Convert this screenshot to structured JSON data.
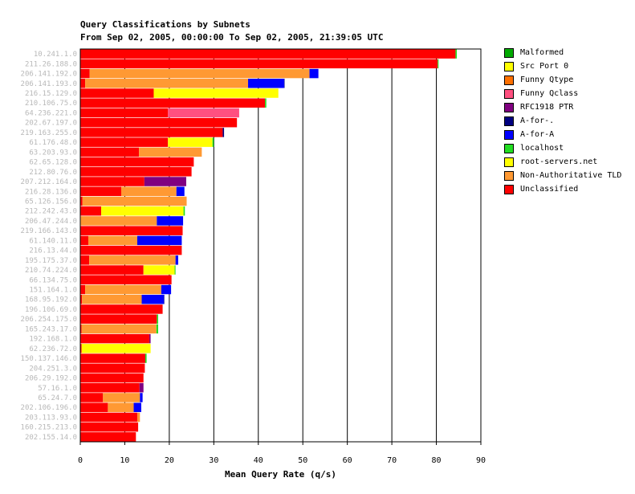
{
  "chart_data": {
    "type": "bar",
    "orientation": "horizontal",
    "stacked": true,
    "title": "Query Classifications by Subnets",
    "subtitle": "From Sep 02, 2005, 00:00:00 To Sep 02, 2005, 21:39:05 UTC",
    "xlabel": "Mean Query Rate (q/s)",
    "ylabel": "",
    "xlim": [
      0,
      90
    ],
    "xticks": [
      0,
      10,
      20,
      30,
      40,
      50,
      60,
      70,
      80,
      90
    ],
    "grid": true,
    "legend_position": "right",
    "categories": [
      "10.241.1.0",
      "211.26.188.0",
      "206.141.192.0",
      "206.141.193.0",
      "216.15.129.0",
      "210.106.75.0",
      "64.236.221.0",
      "202.67.197.0",
      "219.163.255.0",
      "61.176.48.0",
      "63.203.93.0",
      "62.65.128.0",
      "212.80.76.0",
      "207.212.164.0",
      "216.28.136.0",
      "65.126.156.0",
      "212.242.43.0",
      "206.47.244.0",
      "219.166.143.0",
      "61.140.11.0",
      "216.13.44.0",
      "195.175.37.0",
      "210.74.224.0",
      "66.134.75.0",
      "151.164.1.0",
      "168.95.192.0",
      "196.106.69.0",
      "206.254.175.0",
      "165.243.17.0",
      "192.168.1.0",
      "62.236.72.0",
      "150.137.146.0",
      "204.251.3.0",
      "206.29.192.0",
      "57.16.1.0",
      "65.24.7.0",
      "202.106.196.0",
      "203.113.93.0",
      "160.215.213.0",
      "202.155.14.0"
    ],
    "series": [
      {
        "name": "Unclassified",
        "color": "#ff0000",
        "values": [
          84.3,
          80.3,
          2.1,
          1.1,
          16.5,
          41.5,
          19.7,
          35.2,
          32.0,
          19.7,
          13.2,
          25.5,
          25.0,
          14.4,
          9.2,
          0.5,
          4.7,
          0.1,
          23.0,
          1.8,
          22.8,
          2.0,
          14.2,
          20.5,
          1.1,
          0.4,
          18.5,
          17.2,
          0.3,
          15.5,
          0.3,
          14.6,
          14.5,
          14.2,
          13.3,
          5.1,
          6.2,
          12.8,
          13.0,
          12.5
        ]
      },
      {
        "name": "Non-Authoritative TLD",
        "color": "#ff9933",
        "values": [
          0,
          0,
          49.4,
          36.6,
          0,
          0,
          0,
          0,
          0,
          0,
          14.1,
          0,
          0,
          0,
          12.4,
          23.4,
          0,
          17.1,
          0,
          11.0,
          0,
          19.4,
          0,
          0,
          17.1,
          13.4,
          0,
          0,
          16.8,
          0,
          0,
          0,
          0,
          0,
          0,
          8.3,
          5.8,
          0.6,
          0,
          0
        ]
      },
      {
        "name": "root-servers.net",
        "color": "#ffff00",
        "values": [
          0,
          0,
          0,
          0,
          28.0,
          0,
          0,
          0,
          0,
          10.0,
          0,
          0,
          0,
          0,
          0,
          0,
          18.5,
          0,
          0,
          0,
          0,
          0,
          7.0,
          0,
          0,
          0,
          0,
          0,
          0,
          0,
          15.5,
          0,
          0,
          0,
          0,
          0,
          0,
          0,
          0,
          0
        ]
      },
      {
        "name": "localhost",
        "color": "#22dd22",
        "values": [
          0.3,
          0.2,
          0,
          0,
          0,
          0.3,
          0,
          0,
          0,
          0.3,
          0,
          0,
          0,
          0,
          0,
          0,
          0.3,
          0,
          0,
          0,
          0,
          0,
          0.2,
          0,
          0,
          0,
          0,
          0.3,
          0.4,
          0,
          0,
          0.3,
          0,
          0,
          0,
          0,
          0,
          0,
          0,
          0
        ]
      },
      {
        "name": "A-for-A",
        "color": "#0000ff",
        "values": [
          0,
          0,
          2.0,
          8.1,
          0,
          0,
          0,
          0,
          0,
          0,
          0,
          0,
          0,
          0,
          1.8,
          0,
          0,
          5.9,
          0,
          10.0,
          0,
          0.6,
          0,
          0,
          2.2,
          5.0,
          0,
          0,
          0,
          0,
          0,
          0,
          0,
          0,
          0,
          0.6,
          1.7,
          0,
          0,
          0
        ]
      },
      {
        "name": "A-for-.",
        "color": "#000080",
        "values": [
          0,
          0,
          0,
          0.1,
          0,
          0,
          0,
          0,
          0.3,
          0,
          0,
          0,
          0,
          0,
          0,
          0,
          0,
          0,
          0,
          0,
          0,
          0,
          0,
          0,
          0,
          0.1,
          0,
          0,
          0,
          0,
          0,
          0,
          0,
          0,
          0,
          0,
          0,
          0,
          0,
          0
        ]
      },
      {
        "name": "RFC1918 PTR",
        "color": "#800080",
        "values": [
          0,
          0,
          0,
          0,
          0,
          0,
          0,
          0,
          0,
          0,
          0,
          0,
          0,
          9.4,
          0,
          0,
          0,
          0,
          0,
          0,
          0,
          0,
          0,
          0,
          0,
          0,
          0,
          0,
          0,
          0.3,
          0,
          0,
          0,
          0,
          0.9,
          0,
          0,
          0,
          0,
          0
        ]
      },
      {
        "name": "Funny Qclass",
        "color": "#ff5080",
        "values": [
          0,
          0,
          0,
          0,
          0,
          0,
          16.0,
          0,
          0,
          0,
          0,
          0,
          0,
          0,
          0,
          0,
          0,
          0,
          0,
          0,
          0,
          0,
          0,
          0,
          0,
          0,
          0,
          0,
          0,
          0,
          0,
          0,
          0,
          0,
          0,
          0,
          0,
          0,
          0,
          0
        ]
      },
      {
        "name": "Funny Qtype",
        "color": "#ff7000",
        "values": [
          0,
          0,
          0,
          0,
          0,
          0,
          0,
          0,
          0,
          0,
          0,
          0,
          0,
          0,
          0,
          0,
          0,
          0,
          0,
          0,
          0,
          0,
          0,
          0,
          0,
          0,
          0,
          0,
          0,
          0,
          0,
          0,
          0,
          0,
          0,
          0,
          0,
          0,
          0,
          0
        ]
      },
      {
        "name": "Src Port 0",
        "color": "#ffff00",
        "values": [
          0,
          0,
          0,
          0,
          0,
          0,
          0,
          0,
          0,
          0,
          0,
          0,
          0,
          0,
          0,
          0,
          0,
          0,
          0,
          0,
          0,
          0,
          0,
          0,
          0,
          0,
          0,
          0,
          0,
          0,
          0,
          0,
          0,
          0,
          0,
          0,
          0,
          0,
          0,
          0
        ]
      },
      {
        "name": "Malformed",
        "color": "#00aa00",
        "values": [
          0,
          0,
          0,
          0,
          0,
          0,
          0,
          0,
          0,
          0,
          0,
          0,
          0,
          0,
          0,
          0,
          0,
          0,
          0,
          0,
          0,
          0,
          0,
          0,
          0,
          0,
          0,
          0,
          0,
          0,
          0,
          0,
          0,
          0,
          0,
          0,
          0,
          0,
          0,
          0
        ]
      }
    ],
    "legend": [
      {
        "label": "Malformed",
        "color": "#00aa00"
      },
      {
        "label": "Src Port 0",
        "color": "#ffff00"
      },
      {
        "label": "Funny Qtype",
        "color": "#ff7000"
      },
      {
        "label": "Funny Qclass",
        "color": "#ff5080"
      },
      {
        "label": "RFC1918 PTR",
        "color": "#800080"
      },
      {
        "label": "A-for-.",
        "color": "#000080"
      },
      {
        "label": "A-for-A",
        "color": "#0000ff"
      },
      {
        "label": "localhost",
        "color": "#22dd22"
      },
      {
        "label": "root-servers.net",
        "color": "#ffff00"
      },
      {
        "label": "Non-Authoritative TLD",
        "color": "#ff9933"
      },
      {
        "label": "Unclassified",
        "color": "#ff0000"
      }
    ]
  }
}
